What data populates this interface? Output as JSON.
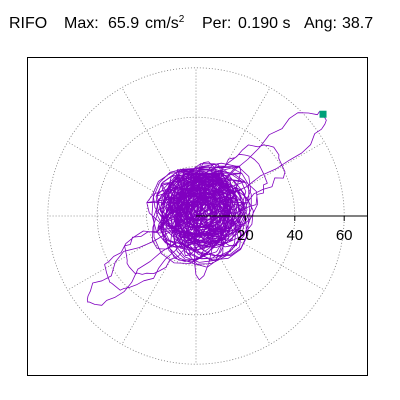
{
  "header": {
    "station": "RIFO",
    "max_label": "Max:",
    "max_value": "65.9",
    "max_unit": "cm/s",
    "max_unit_exp": "2",
    "per_label": "Per:",
    "per_value": "0.190 s",
    "ang_label": "Ang:",
    "ang_value": "38.7"
  },
  "chart_data": {
    "type": "polar",
    "radial_ticks": [
      20,
      40,
      60
    ],
    "radial_tick_labels": [
      "20",
      "40",
      "60"
    ],
    "rings": [
      20,
      40,
      60
    ],
    "axis_max": 70,
    "spoke_angles_deg": [
      0,
      30,
      60,
      90,
      120,
      150,
      180,
      210,
      240,
      270,
      300,
      330
    ],
    "grid": "dotted",
    "orbit": {
      "color": "#8000c0",
      "max_amplitude": 65.9,
      "max_angle_deg": 38.7,
      "extent_positive": 65.9,
      "extent_negative": 56.0
    },
    "peak_marker": {
      "color": "#00a07a",
      "r": 65.9,
      "angle_deg": 38.7
    }
  }
}
